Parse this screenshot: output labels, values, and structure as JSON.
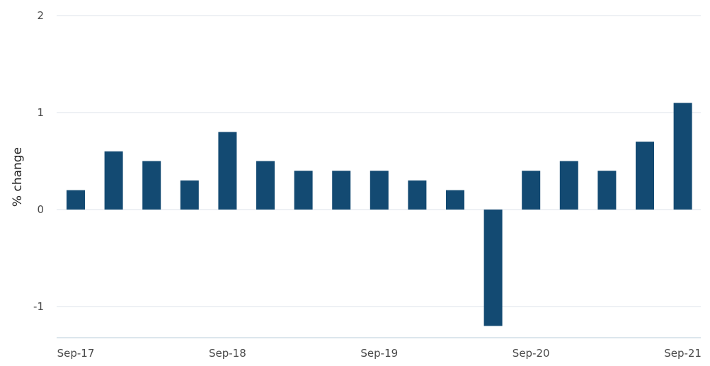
{
  "chart_data": {
    "type": "bar",
    "title": "",
    "xlabel": "",
    "ylabel": "% change",
    "ylim": [
      -1.3,
      2
    ],
    "y_ticks": [
      2,
      1,
      0,
      -1
    ],
    "x_tick_labels": [
      "Sep-17",
      "Sep-18",
      "Sep-19",
      "Sep-20",
      "Sep-21"
    ],
    "x_tick_label_indices": [
      0,
      4,
      8,
      12,
      16
    ],
    "grid": true,
    "legend": "none",
    "bar_color": "#134a72",
    "categories": [
      "Sep-17",
      "Dec-17",
      "Mar-18",
      "Jun-18",
      "Sep-18",
      "Dec-18",
      "Mar-19",
      "Jun-19",
      "Sep-19",
      "Dec-19",
      "Mar-20",
      "Jun-20",
      "Sep-20",
      "Dec-20",
      "Mar-21",
      "Jun-21",
      "Sep-21"
    ],
    "values": [
      0.2,
      0.6,
      0.5,
      0.3,
      0.8,
      0.5,
      0.4,
      0.4,
      0.4,
      0.3,
      0.2,
      -1.2,
      0.4,
      0.5,
      0.4,
      0.7,
      1.1
    ]
  }
}
